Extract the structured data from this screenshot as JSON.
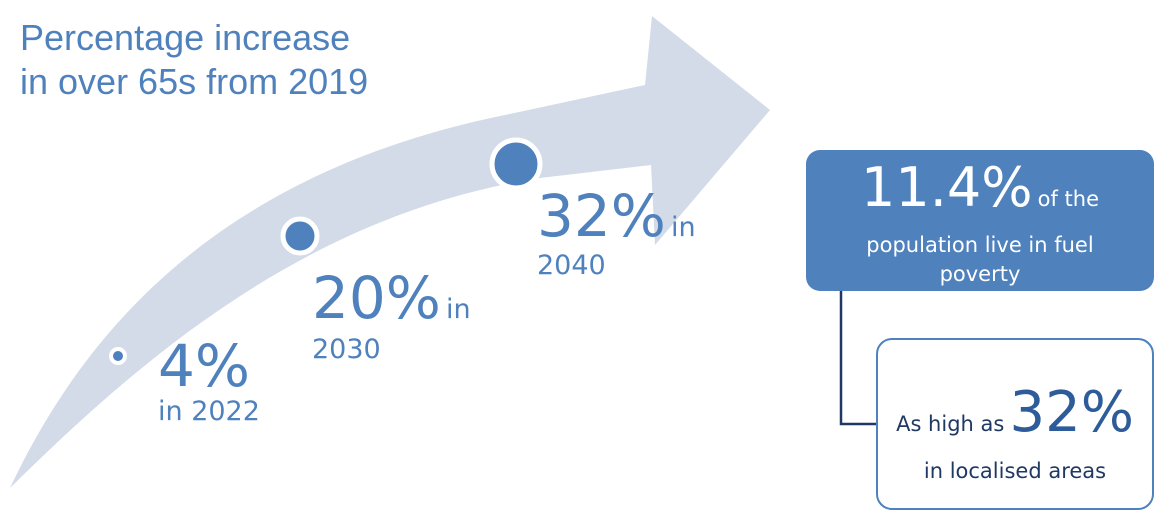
{
  "title": {
    "line1": "Percentage increase",
    "line2": "in over 65s from 2019"
  },
  "milestones": [
    {
      "value": "4%",
      "suffix": "",
      "year": "in 2022",
      "percent": 4,
      "year_num": 2022
    },
    {
      "value": "20%",
      "suffix": "in",
      "year": "2030",
      "percent": 20,
      "year_num": 2030
    },
    {
      "value": "32%",
      "suffix": "in",
      "year": "2040",
      "percent": 32,
      "year_num": 2040
    }
  ],
  "fuel_poverty": {
    "value": "11.4%",
    "value_suffix": "of the",
    "description": "population live in fuel poverty",
    "sub_prefix": "As high as",
    "sub_value": "32%",
    "sub_description": "in localised areas"
  },
  "colors": {
    "accent": "#4f81bd",
    "arrow": "#d3dbe8",
    "dark_text": "#1f3864"
  }
}
